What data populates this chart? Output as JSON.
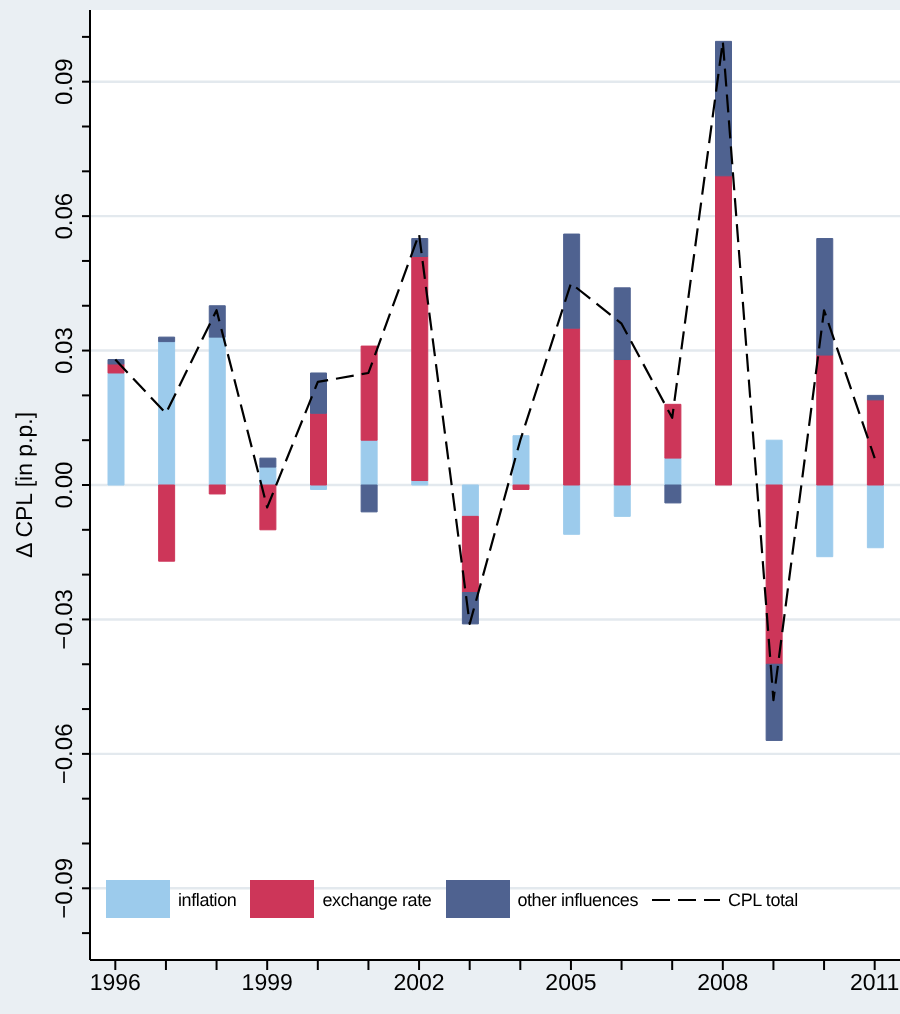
{
  "chart_data": {
    "type": "bar",
    "stacked": true,
    "ylabel": "Δ CPL [in p.p.]",
    "categories": [
      "1996",
      null,
      null,
      "1999",
      null,
      null,
      "2002",
      null,
      null,
      "2005",
      null,
      null,
      "2008",
      null,
      null,
      "2011"
    ],
    "series": [
      {
        "name": "inflation",
        "color": "#9ccbec",
        "values": [
          0.025,
          0.032,
          0.033,
          0.004,
          -0.001,
          0.01,
          0.001,
          -0.007,
          0.011,
          -0.011,
          -0.007,
          0.006,
          0,
          0.01,
          -0.016,
          -0.014
        ]
      },
      {
        "name": "exchange rate",
        "color": "#cd3659",
        "values": [
          0.002,
          -0.017,
          -0.002,
          -0.01,
          0.016,
          0.021,
          0.05,
          -0.017,
          -0.001,
          0.035,
          0.028,
          0.012,
          0.069,
          -0.04,
          0.029,
          0.019
        ]
      },
      {
        "name": "other influences",
        "color": "#4f6290",
        "values": [
          0.001,
          0.001,
          0.007,
          0.002,
          0.009,
          -0.006,
          0.004,
          -0.007,
          0,
          0.021,
          0.016,
          -0.004,
          0.03,
          -0.017,
          0.026,
          0.001
        ]
      },
      {
        "name": "CPL total",
        "type": "line",
        "color": "#000000",
        "line_style": "dashed",
        "values": [
          0.028,
          0.016,
          0.039,
          -0.005,
          0.023,
          0.025,
          0.056,
          -0.031,
          0.01,
          0.045,
          0.036,
          0.015,
          0.099,
          -0.048,
          0.039,
          0.006
        ]
      }
    ],
    "ylim": [
      -0.106,
      0.106
    ],
    "yticks": [
      {
        "value": -0.1,
        "label": null
      },
      {
        "value": -0.09,
        "label": "−0.09"
      },
      {
        "value": -0.08,
        "label": null
      },
      {
        "value": -0.07,
        "label": null
      },
      {
        "value": -0.06,
        "label": "−0.06"
      },
      {
        "value": -0.05,
        "label": null
      },
      {
        "value": -0.04,
        "label": null
      },
      {
        "value": -0.03,
        "label": "−0.03"
      },
      {
        "value": -0.02,
        "label": null
      },
      {
        "value": -0.01,
        "label": null
      },
      {
        "value": 0,
        "label": "0.00"
      },
      {
        "value": 0.01,
        "label": null
      },
      {
        "value": 0.02,
        "label": null
      },
      {
        "value": 0.03,
        "label": "0.03"
      },
      {
        "value": 0.04,
        "label": null
      },
      {
        "value": 0.05,
        "label": null
      },
      {
        "value": 0.06,
        "label": "0.06"
      },
      {
        "value": 0.07,
        "label": null
      },
      {
        "value": 0.08,
        "label": null
      },
      {
        "value": 0.09,
        "label": "0.09"
      },
      {
        "value": 0.1,
        "label": null
      }
    ],
    "grid": "y",
    "legend": "bottom"
  }
}
